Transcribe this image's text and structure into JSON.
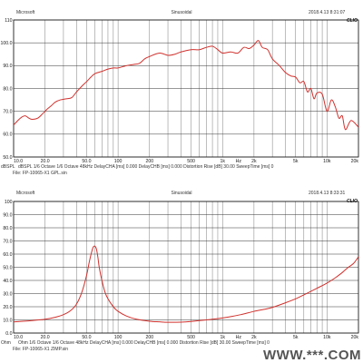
{
  "colors": {
    "curve": "#d0312d",
    "grid": "#222222",
    "background": "#ffffff"
  },
  "chart_data": [
    {
      "type": "line",
      "header": {
        "left": "Microsoft",
        "center": "Sinusoidal",
        "right": "2018.4.13 8:31:07"
      },
      "brand": "CLIO",
      "ylabel": "dBSPL",
      "ylim": [
        50,
        110
      ],
      "y_ticks": [
        50,
        60,
        70,
        80,
        90,
        100,
        110
      ],
      "y_tick_labels": [
        "50.0",
        "60.0",
        "70.0",
        "80.0",
        "90.0",
        "100.0",
        "110"
      ],
      "x_scale": "log",
      "xlim": [
        10,
        20000
      ],
      "x_ticks": [
        10,
        20,
        50,
        100,
        200,
        500,
        1000,
        2000,
        5000,
        10000,
        20000
      ],
      "x_tick_labels": [
        "10.0",
        "20.0",
        "50.0",
        "100",
        "200",
        "500",
        "1k",
        "2k",
        "5k",
        "10k",
        "20k"
      ],
      "x_unit": "Hz",
      "grid": true,
      "footer_line1": "dBSPL   1/6 Octave   1/6 Octave   48kHz   DelayCHA [ms] 0.000   DelayCHB [ms] 0.000   Distortion Rise [dB] 30.00   SweepTime [ms] 0",
      "footer_line2": "File: FP-10065-X1 GPL.sin",
      "series": [
        {
          "x": [
            10,
            11,
            12,
            13,
            14,
            15,
            17,
            19,
            21,
            23,
            25,
            28,
            32,
            36,
            40,
            45,
            50,
            55,
            60,
            70,
            80,
            90,
            100,
            120,
            140,
            160,
            180,
            200,
            250,
            300,
            350,
            400,
            500,
            600,
            700,
            800,
            900,
            1000,
            1200,
            1400,
            1600,
            1800,
            2000,
            2200,
            2400,
            2700,
            3000,
            3500,
            4000,
            4500,
            5000,
            5500,
            6000,
            6500,
            7000,
            7500,
            8000,
            9000,
            10000,
            11000,
            12000,
            13000,
            14000,
            15000,
            17000,
            20000
          ],
          "y": [
            64,
            66,
            67.5,
            68,
            67,
            66.5,
            67,
            69,
            71,
            72.5,
            74,
            75,
            75.5,
            76,
            78.5,
            81,
            83,
            85,
            86.5,
            87.5,
            88.5,
            89,
            89,
            90,
            90.5,
            91,
            93,
            94,
            95.5,
            94.5,
            95,
            96,
            97,
            97,
            98,
            98.5,
            97,
            95.5,
            96,
            95.5,
            98,
            97.5,
            99,
            101,
            98,
            97,
            93,
            90,
            87,
            85.5,
            85,
            82.5,
            83,
            78.5,
            80,
            75.5,
            78,
            77.5,
            70,
            75,
            72,
            67,
            68,
            62,
            66,
            63
          ]
        }
      ]
    },
    {
      "type": "line",
      "header": {
        "left": "Microsoft",
        "center": "Sinusoidal",
        "right": "2018.4.13 8:33:31"
      },
      "brand": "CLIO",
      "ylabel": "Ohm",
      "ylim": [
        0,
        100
      ],
      "y_ticks": [
        0,
        10,
        20,
        30,
        40,
        50,
        60,
        70,
        80,
        90,
        100
      ],
      "y_tick_labels": [
        "0.0",
        "10.0",
        "20.0",
        "30.0",
        "40.0",
        "50.0",
        "60.0",
        "70.0",
        "80.0",
        "90.0",
        "100"
      ],
      "x_scale": "log",
      "xlim": [
        10,
        20000
      ],
      "x_ticks": [
        10,
        20,
        50,
        100,
        200,
        500,
        1000,
        2000,
        5000,
        10000,
        20000
      ],
      "x_tick_labels": [
        "10.0",
        "20.0",
        "50.0",
        "100",
        "200",
        "500",
        "1k",
        "2k",
        "5k",
        "10k",
        "20k"
      ],
      "x_unit": "Hz",
      "grid": true,
      "footer_line1": "Ohm   1/6 Octave   1/6 Octave   48kHz   DelayCHA [ms] 0.000   DelayCHB [ms] 0.000   Distortion Rise [dB] 30.00   SweepTime [ms] 0",
      "footer_line2": "File: FP-10065-X1 ZIMP.sin",
      "series": [
        {
          "x": [
            10,
            15,
            20,
            25,
            30,
            35,
            40,
            45,
            50,
            53,
            56,
            58,
            60,
            62,
            64,
            66,
            70,
            75,
            80,
            90,
            100,
            120,
            150,
            200,
            250,
            300,
            400,
            500,
            600,
            700,
            800,
            1000,
            1200,
            1500,
            2000,
            2500,
            3000,
            4000,
            5000,
            6000,
            8000,
            10000,
            12000,
            14000,
            16000,
            18000,
            20000
          ],
          "y": [
            8.5,
            9.5,
            10.5,
            12,
            14,
            17,
            22,
            31,
            44,
            54,
            62,
            65.5,
            66,
            64,
            58,
            50,
            40,
            31,
            26,
            20,
            16.5,
            13,
            10.5,
            9,
            8.5,
            8.2,
            8.3,
            8.8,
            9.5,
            10,
            10.5,
            11.5,
            12.5,
            14,
            16.5,
            18,
            19.5,
            23,
            26,
            29,
            34,
            38,
            42,
            46,
            50,
            53,
            58
          ]
        }
      ]
    }
  ],
  "watermark": "WWW.***.COM"
}
